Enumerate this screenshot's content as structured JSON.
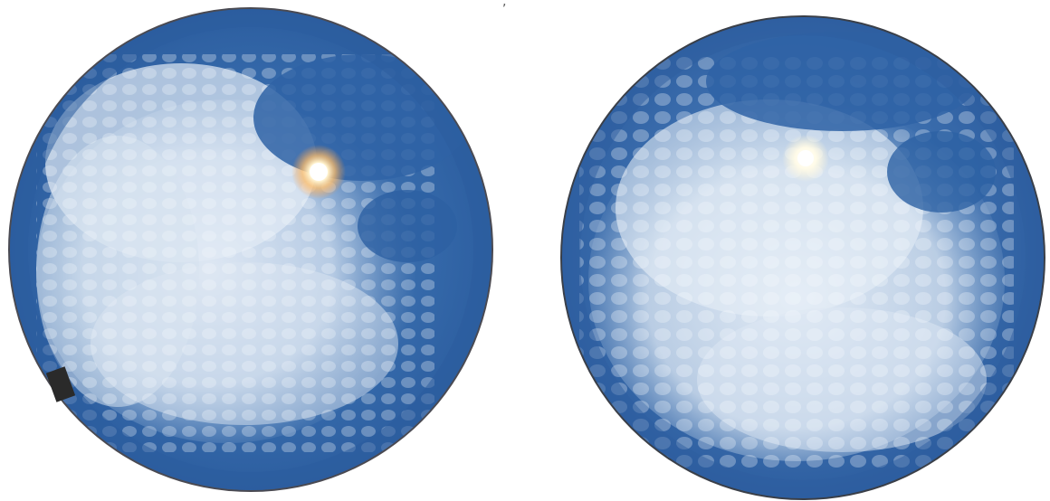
{
  "images": [
    {
      "label": "",
      "description_kind": "all-sky fisheye photograph",
      "sun_visible": true,
      "sun_color": "#fff6dc",
      "sky_color": "#2f64a8",
      "cloud_color": "#d8e4f1",
      "rim_color": "#4a4a52"
    },
    {
      "label": "",
      "description_kind": "all-sky fisheye photograph",
      "sun_visible": true,
      "sun_color": "#fffbe8",
      "sky_color": "#3467a7",
      "cloud_color": "#dde7f2",
      "rim_color": "#3a3f48"
    }
  ],
  "top_mark": ","
}
